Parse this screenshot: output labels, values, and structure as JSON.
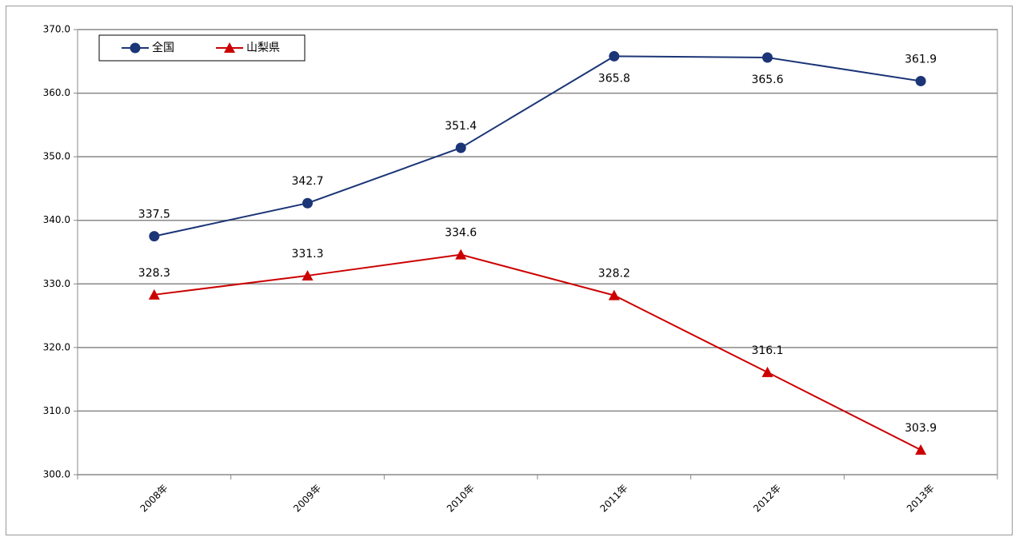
{
  "chart_data": {
    "type": "line",
    "categories": [
      "2008年",
      "2009年",
      "2010年",
      "2011年",
      "2012年",
      "2013年"
    ],
    "series": [
      {
        "name": "全国",
        "color": "#1b3577",
        "marker": "circle",
        "values": [
          337.5,
          342.7,
          351.4,
          365.8,
          365.6,
          361.9
        ]
      },
      {
        "name": "山梨県",
        "color": "#cc0000",
        "marker": "triangle",
        "values": [
          328.3,
          331.3,
          334.6,
          328.2,
          316.1,
          303.9
        ]
      }
    ],
    "ylim": [
      300,
      370
    ],
    "yticks": [
      {
        "value": 300,
        "label": "300.0"
      },
      {
        "value": 310,
        "label": "310.0"
      },
      {
        "value": 320,
        "label": "320.0"
      },
      {
        "value": 330,
        "label": "330.0"
      },
      {
        "value": 340,
        "label": "340.0"
      },
      {
        "value": 350,
        "label": "350.0"
      },
      {
        "value": 360,
        "label": "360.0"
      },
      {
        "value": 370,
        "label": "370.0"
      }
    ],
    "grid": true,
    "legend": "upper left"
  }
}
